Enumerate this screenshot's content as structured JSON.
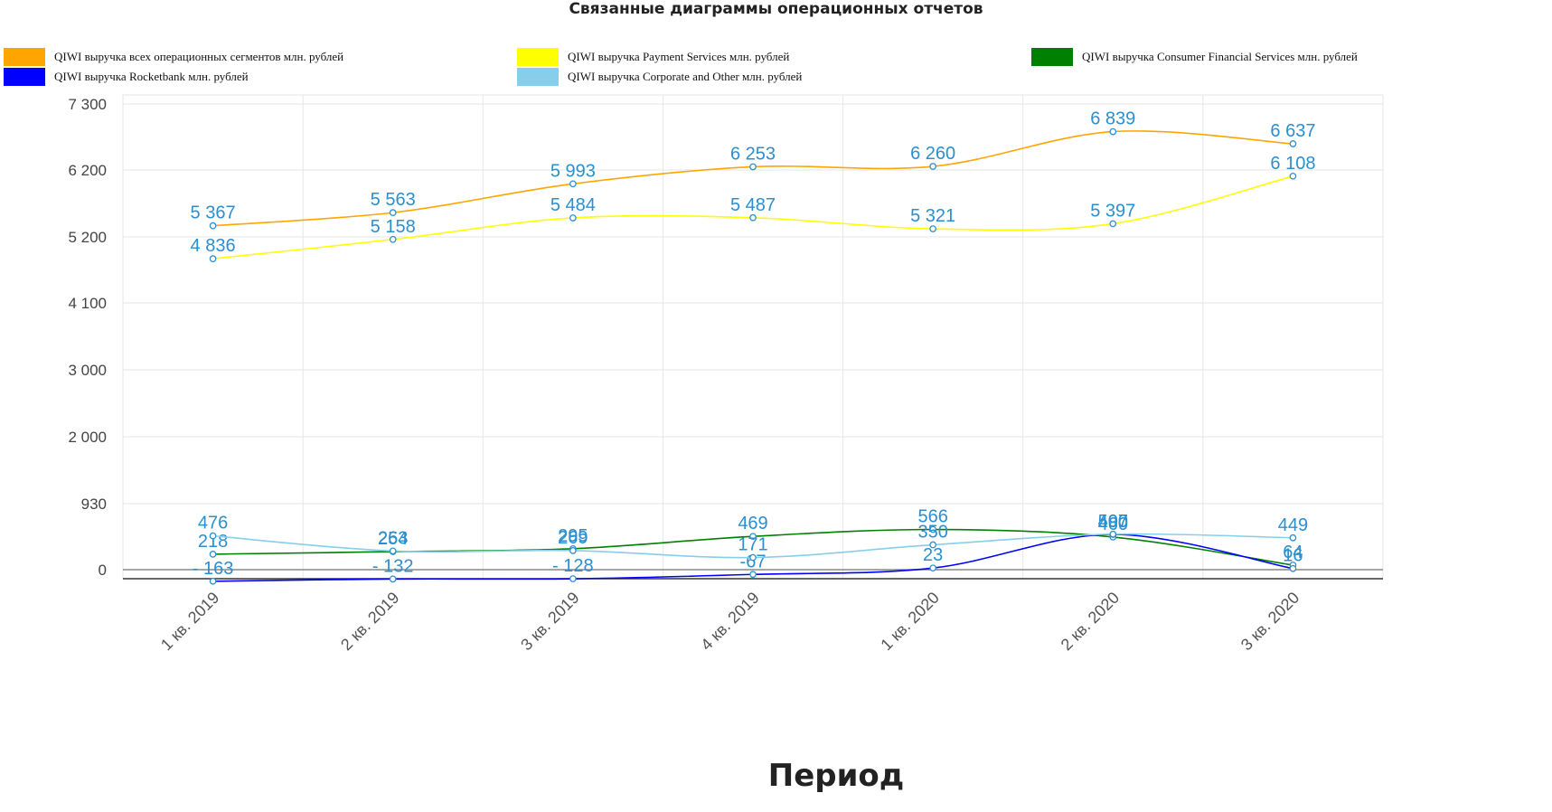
{
  "chart_data": {
    "type": "line",
    "title": "Связанные диаграммы операционных отчетов",
    "xlabel": "Период",
    "ylabel": "",
    "categories": [
      "1 кв. 2019",
      "2 кв. 2019",
      "3 кв. 2019",
      "4 кв. 2019",
      "1 кв. 2020",
      "2 кв. 2020",
      "3 кв. 2020"
    ],
    "y_ticks": [
      {
        "value": 7300,
        "label": "7 300"
      },
      {
        "value": 6200,
        "label": "6 200"
      },
      {
        "value": 5200,
        "label": "5 200"
      },
      {
        "value": 4100,
        "label": "4 100"
      },
      {
        "value": 3000,
        "label": "3 000"
      },
      {
        "value": 2000,
        "label": "2 000"
      },
      {
        "value": 930,
        "label": "930"
      },
      {
        "value": 0,
        "label": "0"
      }
    ],
    "ylim": [
      -163,
      7300
    ],
    "grid": true,
    "legend_position": "top",
    "series": [
      {
        "name": "QIWI выручка всех операционных сегментов млн. рублей",
        "color": "#ffa500",
        "values": [
          5367,
          5563,
          5993,
          6253,
          6260,
          6839,
          6637
        ],
        "labels": [
          "5 367",
          "5 563",
          "5 993",
          "6 253",
          "6 260",
          "6 839",
          "6 637"
        ]
      },
      {
        "name": "QIWI выручка Payment Services млн. рублей",
        "color": "#ffff00",
        "values": [
          4836,
          5158,
          5484,
          5487,
          5321,
          5397,
          6108
        ],
        "labels": [
          "4 836",
          "5 158",
          "5 484",
          "5 487",
          "5 321",
          "5 397",
          "6 108"
        ]
      },
      {
        "name": "QIWI выручка Consumer Financial Services млн. рублей",
        "color": "#008000",
        "values": [
          218,
          254,
          295,
          469,
          566,
          460,
          64
        ],
        "labels": [
          "218",
          "254",
          "295",
          "469",
          "566",
          "460",
          "64"
        ]
      },
      {
        "name": "QIWI выручка Rocketbank млн. рублей",
        "color": "#0000ff",
        "values": [
          -163,
          -132,
          -128,
          -67,
          23,
          497,
          16
        ],
        "labels": [
          "- 163",
          "- 132",
          "- 128",
          "-67",
          "23",
          "497",
          "16"
        ]
      },
      {
        "name": "QIWI выручка Corporate and Other млн. рублей",
        "color": "#87ceeb",
        "values": [
          476,
          263,
          269,
          171,
          350,
          500,
          449
        ],
        "labels": [
          "476",
          "263",
          "269",
          "171",
          "350",
          "500",
          "449"
        ]
      }
    ]
  }
}
